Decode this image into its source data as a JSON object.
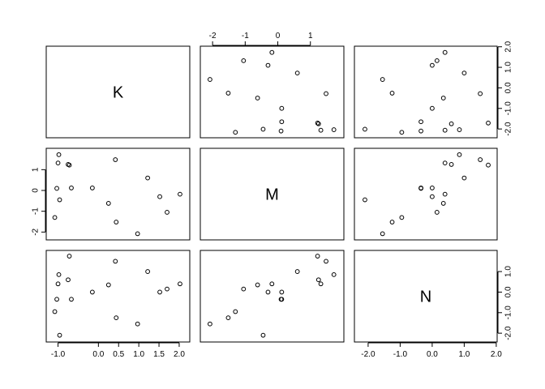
{
  "chart_data": {
    "type": "scatter-matrix",
    "variables": [
      "K",
      "M",
      "N"
    ],
    "points": [
      {
        "K": -1.08,
        "M": -1.3,
        "N": -0.95
      },
      {
        "K": -1.03,
        "M": 0.1,
        "N": -0.35
      },
      {
        "K": -1.0,
        "M": 1.32,
        "N": 0.4
      },
      {
        "K": -0.98,
        "M": 1.72,
        "N": 0.85
      },
      {
        "K": -0.96,
        "M": -0.45,
        "N": -2.1
      },
      {
        "K": -0.75,
        "M": 1.25,
        "N": 0.6
      },
      {
        "K": -0.72,
        "M": 1.22,
        "N": 1.75
      },
      {
        "K": -0.67,
        "M": 0.12,
        "N": -0.35
      },
      {
        "K": -0.15,
        "M": 0.12,
        "N": 0.0
      },
      {
        "K": 0.25,
        "M": -0.62,
        "N": 0.35
      },
      {
        "K": 0.42,
        "M": 1.48,
        "N": 1.5
      },
      {
        "K": 0.44,
        "M": -1.52,
        "N": -1.25
      },
      {
        "K": 0.97,
        "M": -2.08,
        "N": -1.55
      },
      {
        "K": 1.22,
        "M": 0.6,
        "N": 1.0
      },
      {
        "K": 1.52,
        "M": -0.3,
        "N": 0.0
      },
      {
        "K": 1.7,
        "M": -1.05,
        "N": 0.15
      },
      {
        "K": 2.02,
        "M": -0.18,
        "N": 0.4
      }
    ],
    "axes": {
      "K": {
        "range": [
          -1.15,
          2.12
        ],
        "ticks": [
          "-1.0",
          "0.0",
          "0.5",
          "1.0",
          "1.5",
          "2.0"
        ]
      },
      "M": {
        "range": [
          -2.2,
          1.85
        ],
        "ticks": [
          "-2",
          "-1",
          "0",
          "1"
        ]
      },
      "N": {
        "range": [
          -2.25,
          1.85
        ],
        "ticks": [
          "-2.0",
          "-1.0",
          "0.0",
          "1.0",
          "2.0"
        ],
        "ticks_right": [
          "-2.0",
          "-1.0",
          "0.0",
          "1.0"
        ]
      }
    },
    "tick_placement": {
      "K": {
        "bottom": "col0"
      },
      "M": {
        "top": "col1",
        "left": "row1"
      },
      "N": {
        "bottom": "col2",
        "right": "row0",
        "right_alt": "row2"
      }
    }
  }
}
